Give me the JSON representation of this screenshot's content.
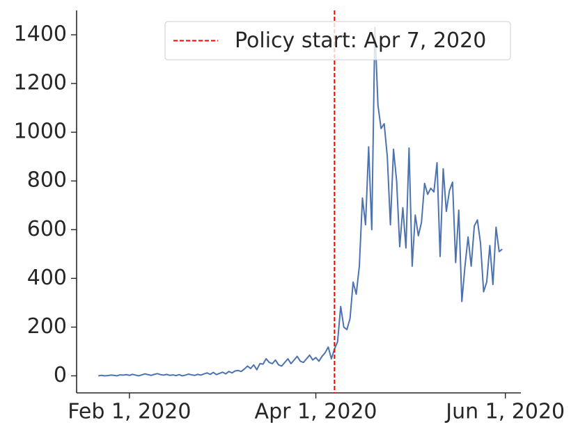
{
  "chart_data": {
    "type": "line",
    "color": "#4c72b0",
    "x": [
      "2020-01-22",
      "2020-01-23",
      "2020-01-24",
      "2020-01-25",
      "2020-01-26",
      "2020-01-27",
      "2020-01-28",
      "2020-01-29",
      "2020-01-30",
      "2020-01-31",
      "2020-02-01",
      "2020-02-02",
      "2020-02-03",
      "2020-02-04",
      "2020-02-05",
      "2020-02-06",
      "2020-02-07",
      "2020-02-08",
      "2020-02-09",
      "2020-02-10",
      "2020-02-11",
      "2020-02-12",
      "2020-02-13",
      "2020-02-14",
      "2020-02-15",
      "2020-02-16",
      "2020-02-17",
      "2020-02-18",
      "2020-02-19",
      "2020-02-20",
      "2020-02-21",
      "2020-02-22",
      "2020-02-23",
      "2020-02-24",
      "2020-02-25",
      "2020-02-26",
      "2020-02-27",
      "2020-02-28",
      "2020-02-29",
      "2020-03-01",
      "2020-03-02",
      "2020-03-03",
      "2020-03-04",
      "2020-03-05",
      "2020-03-06",
      "2020-03-07",
      "2020-03-08",
      "2020-03-09",
      "2020-03-10",
      "2020-03-11",
      "2020-03-12",
      "2020-03-13",
      "2020-03-14",
      "2020-03-15",
      "2020-03-16",
      "2020-03-17",
      "2020-03-18",
      "2020-03-19",
      "2020-03-20",
      "2020-03-21",
      "2020-03-22",
      "2020-03-23",
      "2020-03-24",
      "2020-03-25",
      "2020-03-26",
      "2020-03-27",
      "2020-03-28",
      "2020-03-29",
      "2020-03-30",
      "2020-03-31",
      "2020-04-01",
      "2020-04-02",
      "2020-04-03",
      "2020-04-04",
      "2020-04-05",
      "2020-04-06",
      "2020-04-07",
      "2020-04-08",
      "2020-04-09",
      "2020-04-10",
      "2020-04-11",
      "2020-04-12",
      "2020-04-13",
      "2020-04-14",
      "2020-04-15",
      "2020-04-16",
      "2020-04-17",
      "2020-04-18",
      "2020-04-19",
      "2020-04-20",
      "2020-04-21",
      "2020-04-22",
      "2020-04-23",
      "2020-04-24",
      "2020-04-25",
      "2020-04-26",
      "2020-04-27",
      "2020-04-28",
      "2020-04-29",
      "2020-04-30",
      "2020-05-01",
      "2020-05-02",
      "2020-05-03",
      "2020-05-04",
      "2020-05-05",
      "2020-05-06",
      "2020-05-07",
      "2020-05-08",
      "2020-05-09",
      "2020-05-10",
      "2020-05-11",
      "2020-05-12",
      "2020-05-13",
      "2020-05-14",
      "2020-05-15",
      "2020-05-16",
      "2020-05-17",
      "2020-05-18",
      "2020-05-19",
      "2020-05-20",
      "2020-05-21",
      "2020-05-22",
      "2020-05-23",
      "2020-05-24",
      "2020-05-25",
      "2020-05-26",
      "2020-05-27",
      "2020-05-28",
      "2020-05-29",
      "2020-05-30",
      "2020-05-31"
    ],
    "values": [
      0,
      2,
      0,
      1,
      3,
      2,
      0,
      4,
      3,
      5,
      2,
      6,
      3,
      0,
      4,
      8,
      5,
      2,
      6,
      9,
      5,
      3,
      6,
      2,
      4,
      1,
      5,
      0,
      3,
      7,
      4,
      2,
      6,
      3,
      8,
      12,
      6,
      14,
      5,
      10,
      15,
      8,
      18,
      12,
      20,
      22,
      18,
      28,
      40,
      30,
      45,
      25,
      50,
      48,
      70,
      55,
      50,
      65,
      45,
      40,
      55,
      70,
      50,
      65,
      80,
      60,
      55,
      70,
      85,
      65,
      75,
      60,
      80,
      95,
      118,
      70,
      110,
      140,
      285,
      200,
      190,
      235,
      385,
      335,
      450,
      730,
      620,
      940,
      600,
      1430,
      1110,
      1015,
      1035,
      900,
      620,
      930,
      800,
      530,
      690,
      525,
      935,
      450,
      660,
      575,
      630,
      790,
      745,
      770,
      755,
      875,
      490,
      850,
      675,
      760,
      795,
      465,
      680,
      305,
      450,
      570,
      450,
      615,
      640,
      545,
      345,
      385,
      535,
      375,
      610,
      510,
      520
    ],
    "xlim": [
      "2020-01-15",
      "2020-06-06"
    ],
    "xticks": [
      {
        "value": "2020-02-01",
        "label": "Feb 1, 2020"
      },
      {
        "value": "2020-04-01",
        "label": "Apr 1, 2020"
      },
      {
        "value": "2020-06-01",
        "label": "Jun 1, 2020"
      }
    ],
    "ylim": [
      -70,
      1500
    ],
    "yticks": [
      0,
      200,
      400,
      600,
      800,
      1000,
      1200,
      1400
    ],
    "vline": {
      "x": "2020-04-07",
      "label": "Policy start: Apr 7, 2020",
      "color": "#ff0000"
    },
    "legend": "upper right"
  }
}
